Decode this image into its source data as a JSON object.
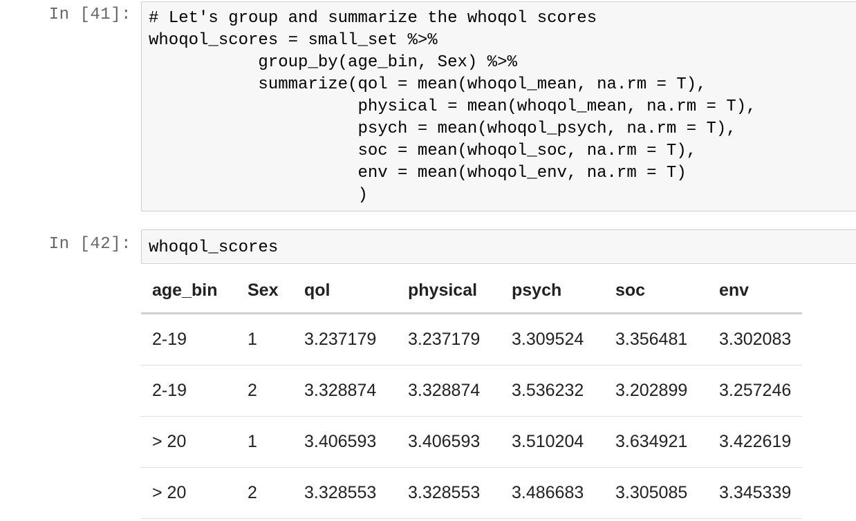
{
  "cells": [
    {
      "prompt": "In [41]:",
      "code_lines": [
        "# Let's group and summarize the whoqol scores",
        "whoqol_scores = small_set %>%",
        "           group_by(age_bin, Sex) %>%",
        "           summarize(qol = mean(whoqol_mean, na.rm = T),",
        "                     physical = mean(whoqol_mean, na.rm = T),",
        "                     psych = mean(whoqol_psych, na.rm = T),",
        "                     soc = mean(whoqol_soc, na.rm = T),",
        "                     env = mean(whoqol_env, na.rm = T)",
        "                     )"
      ]
    },
    {
      "prompt": "In [42]:",
      "code_lines": [
        "whoqol_scores"
      ]
    }
  ],
  "output_table": {
    "columns": [
      "age_bin",
      "Sex",
      "qol",
      "physical",
      "psych",
      "soc",
      "env"
    ],
    "rows": [
      [
        "2-19",
        "1",
        "3.237179",
        "3.237179",
        "3.309524",
        "3.356481",
        "3.302083"
      ],
      [
        "2-19",
        "2",
        "3.328874",
        "3.328874",
        "3.536232",
        "3.202899",
        "3.257246"
      ],
      [
        "> 20",
        "1",
        "3.406593",
        "3.406593",
        "3.510204",
        "3.634921",
        "3.422619"
      ],
      [
        "> 20",
        "2",
        "3.328553",
        "3.328553",
        "3.486683",
        "3.305085",
        "3.345339"
      ]
    ]
  }
}
